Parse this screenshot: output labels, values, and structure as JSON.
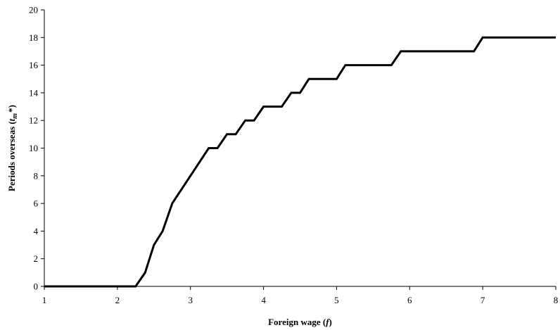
{
  "chart_data": {
    "type": "line",
    "title": "",
    "xlabel": "Foreign wage (",
    "xlabel_var": "f",
    "xlabel_close": ")",
    "ylabel": "Periods overseas (",
    "ylabel_var": "t",
    "ylabel_sub": "m",
    "ylabel_sup": "*",
    "ylabel_close": ")",
    "xlim": [
      1,
      8
    ],
    "ylim": [
      0,
      20
    ],
    "xticks": [
      "1",
      "2",
      "3",
      "4",
      "5",
      "6",
      "7",
      "8"
    ],
    "yticks": [
      "0",
      "2",
      "4",
      "6",
      "8",
      "10",
      "12",
      "14",
      "16",
      "18",
      "20"
    ],
    "grid": false,
    "legend": "none",
    "series": [
      {
        "x": [
          1.0,
          2.25,
          2.38,
          2.5,
          2.62,
          2.75,
          3.25,
          3.37,
          3.5,
          3.62,
          3.75,
          3.87,
          4.0,
          4.25,
          4.38,
          4.5,
          4.62,
          5.0,
          5.12,
          5.75,
          5.88,
          6.88,
          7.0,
          8.0
        ],
        "y": [
          0,
          0,
          1,
          3,
          4,
          6,
          10,
          10,
          11,
          11,
          12,
          12,
          13,
          13,
          14,
          14,
          15,
          15,
          16,
          16,
          17,
          17,
          18,
          18
        ]
      }
    ]
  }
}
